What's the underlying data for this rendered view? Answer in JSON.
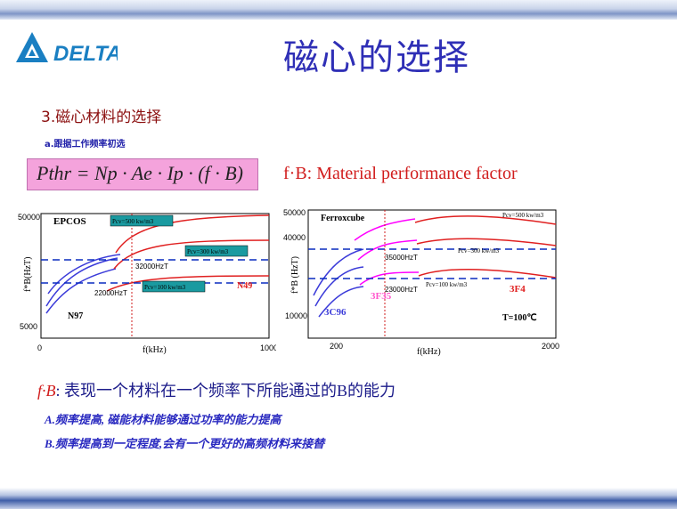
{
  "slide": {
    "title": "磁心的选择",
    "section": "3.磁心材料的选择",
    "subsection": "a.跟据工作频率初选",
    "formula": "Pthr = Np · Ae · Ip · (f · B)",
    "fb_label": "f·B: Material performance factor",
    "bottom_fb": "f·B",
    "bottom_text": ": 表现一个材料在一个频率下所能通过的B的能力",
    "bullet_a": "A.频率提高, 磁能材料能够通过功率的能力提高",
    "bullet_b": "B.频率提高到一定程度,会有一个更好的高频材料来接替"
  },
  "logo": {
    "text": "DELTA",
    "color": "#1a7fc2"
  },
  "colors": {
    "title": "#2f2fb6",
    "red": "#e02020",
    "magenta": "#ff00ff",
    "blue": "#3b3bd9",
    "teal_box": "#1a9aa0",
    "dash_blue": "#0a2bbf"
  },
  "chart_data": [
    {
      "type": "line",
      "name": "EPCOS",
      "title": "EPCOS",
      "xlabel": "f(kHz)",
      "ylabel": "f*B(HzT)",
      "xlim": [
        0,
        1000
      ],
      "ylim": [
        5000,
        50000
      ],
      "x_ticks": [
        "0",
        "1000"
      ],
      "y_ticks": [
        "50000",
        "5000"
      ],
      "series": [
        {
          "name": "Pcv=500 kw/m3",
          "color": "#e02020",
          "x": [
            400,
            500,
            700,
            1000
          ],
          "y": [
            38000,
            42000,
            45000,
            46000
          ]
        },
        {
          "name": "Pcv=300 kw/m3",
          "color": "#e02020",
          "x": [
            400,
            500,
            700,
            1000
          ],
          "y": [
            28000,
            31000,
            32500,
            33000
          ]
        },
        {
          "name": "Pcv=100 kw/m3",
          "color": "#e02020",
          "x": [
            400,
            500,
            700,
            1000
          ],
          "y": [
            17000,
            19000,
            20500,
            21000
          ]
        },
        {
          "name": "N97",
          "color": "#3b3bd9",
          "x": [
            25,
            100,
            200,
            300,
            400
          ],
          "y": [
            12000,
            20000,
            26000,
            29000,
            30500
          ]
        }
      ],
      "annotations": [
        "Pcv=500 kw/m3",
        "Pcv=300 kw/m3",
        "Pcv=100 kw/m3",
        "32000HzT",
        "22000HzT",
        "N49",
        "N97"
      ]
    },
    {
      "type": "line",
      "name": "Ferroxcube",
      "title": "Ferroxcube",
      "xlabel": "f(kHz)",
      "ylabel": "f*B (HzT)",
      "xlim": [
        0,
        2000
      ],
      "ylim": [
        10000,
        50000
      ],
      "x_ticks": [
        "200",
        "2000"
      ],
      "y_ticks": [
        "50000",
        "40000",
        "10000"
      ],
      "series": [
        {
          "name": "3C96",
          "color": "#3b3bd9",
          "x": [
            25,
            100,
            200,
            300
          ],
          "y": [
            15000,
            25000,
            32000,
            35000
          ]
        },
        {
          "name": "3F35",
          "color": "#ff00ff",
          "x": [
            300,
            500,
            700,
            900
          ],
          "y": [
            30000,
            38000,
            41000,
            43000
          ]
        },
        {
          "name": "3F4",
          "color": "#e02020",
          "x": [
            700,
            1000,
            1300,
            1700,
            2000
          ],
          "y": [
            35000,
            40000,
            41000,
            39000,
            38000
          ]
        }
      ],
      "annotations": [
        "Pcv=500 kw/m3",
        "Pcv=300 kw/m3",
        "Pcv=100 kw/m3",
        "35000HzT",
        "23000HzT",
        "3C96",
        "3F35",
        "3F4",
        "T=100℃"
      ]
    }
  ]
}
